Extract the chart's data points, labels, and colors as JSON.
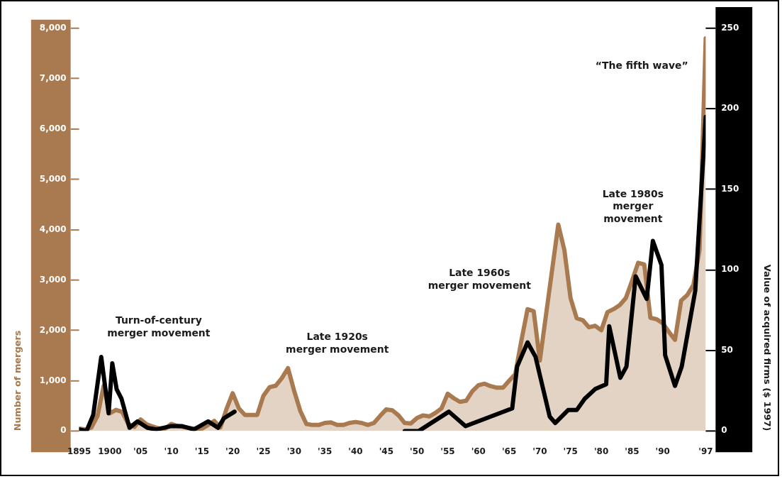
{
  "chart_data": {
    "type": "area",
    "ylabel": "Number of mergers",
    "y2label": "Value of acquired firms ($ 1997)",
    "marker": "none",
    "line_style": "solid",
    "x": [
      1895,
      1896,
      1897,
      1898,
      1899,
      1900,
      1901,
      1902,
      1903,
      1904,
      1905,
      1906,
      1907,
      1908,
      1909,
      1910,
      1911,
      1912,
      1913,
      1914,
      1915,
      1916,
      1917,
      1918,
      1919,
      1920,
      1921,
      1922,
      1923,
      1924,
      1925,
      1926,
      1927,
      1928,
      1929,
      1930,
      1931,
      1932,
      1933,
      1934,
      1935,
      1936,
      1937,
      1938,
      1939,
      1940,
      1941,
      1942,
      1943,
      1944,
      1945,
      1946,
      1947,
      1948,
      1949,
      1950,
      1951,
      1952,
      1953,
      1954,
      1955,
      1956,
      1957,
      1958,
      1959,
      1960,
      1961,
      1962,
      1963,
      1964,
      1965,
      1966,
      1967,
      1968,
      1969,
      1970,
      1971,
      1972,
      1973,
      1974,
      1975,
      1976,
      1977,
      1978,
      1979,
      1980,
      1981,
      1982,
      1983,
      1984,
      1985,
      1986,
      1987,
      1988,
      1989,
      1990,
      1991,
      1992,
      1993,
      1994,
      1995,
      1996,
      1997
    ],
    "xlim": [
      1895,
      1997
    ],
    "xticks": [
      {
        "value": 1895,
        "label": "1895"
      },
      {
        "value": 1900,
        "label": "1900"
      },
      {
        "value": 1905,
        "label": "'05"
      },
      {
        "value": 1910,
        "label": "'10"
      },
      {
        "value": 1915,
        "label": "'15"
      },
      {
        "value": 1920,
        "label": "'20"
      },
      {
        "value": 1925,
        "label": "'25"
      },
      {
        "value": 1930,
        "label": "'30"
      },
      {
        "value": 1935,
        "label": "'35"
      },
      {
        "value": 1940,
        "label": "'40"
      },
      {
        "value": 1945,
        "label": "'45"
      },
      {
        "value": 1950,
        "label": "'50"
      },
      {
        "value": 1955,
        "label": "'55"
      },
      {
        "value": 1960,
        "label": "'60"
      },
      {
        "value": 1965,
        "label": "'65"
      },
      {
        "value": 1970,
        "label": "'70"
      },
      {
        "value": 1975,
        "label": "'75"
      },
      {
        "value": 1980,
        "label": "'80"
      },
      {
        "value": 1985,
        "label": "'85"
      },
      {
        "value": 1990,
        "label": "'90"
      },
      {
        "value": 1997,
        "label": "'97"
      }
    ],
    "ylim": [
      0,
      8000
    ],
    "yticks": [
      0,
      {
        "value": 1000,
        "label": "1,000"
      },
      {
        "value": 2000,
        "label": "2,000"
      },
      {
        "value": 3000,
        "label": "3,000"
      },
      {
        "value": 4000,
        "label": "4,000"
      },
      {
        "value": 5000,
        "label": "5,000"
      },
      {
        "value": 6000,
        "label": "6,000"
      },
      {
        "value": 7000,
        "label": "7,000"
      },
      {
        "value": 8000,
        "label": "8,000"
      }
    ],
    "y2lim": [
      0,
      250
    ],
    "y2ticks": [
      0,
      50,
      100,
      150,
      200,
      250
    ],
    "series": [
      {
        "type": "area",
        "color": "#a97a4f",
        "values": [
          50,
          30,
          70,
          300,
          900,
          350,
          420,
          380,
          140,
          80,
          230,
          130,
          90,
          50,
          50,
          140,
          100,
          80,
          60,
          40,
          50,
          120,
          200,
          70,
          440,
          750,
          450,
          320,
          320,
          320,
          700,
          870,
          900,
          1050,
          1250,
          800,
          400,
          140,
          120,
          120,
          160,
          170,
          120,
          120,
          160,
          180,
          160,
          120,
          160,
          300,
          430,
          410,
          310,
          160,
          150,
          260,
          310,
          290,
          360,
          450,
          740,
          650,
          580,
          600,
          790,
          910,
          940,
          890,
          860,
          860,
          1000,
          1130,
          1800,
          2420,
          2380,
          1400,
          null,
          null,
          4100,
          3590,
          2640,
          2240,
          2200,
          2060,
          2090,
          2000,
          2360,
          2420,
          2500,
          2640,
          2980,
          3340,
          3310,
          2250,
          2220,
          2140,
          1970,
          1810,
          2590,
          2700,
          2900,
          3600,
          7800
        ]
      },
      {
        "type": "line",
        "axis": "y2",
        "color": "#000000",
        "x": [
          1895,
          1896.2,
          1897.3,
          1898.6,
          1899.8,
          1900.4,
          1901.1,
          1901.9,
          1903.2,
          1904.5,
          1906.1,
          1907.6,
          1909.9,
          1911.8,
          1913.7,
          1916,
          1917.6,
          1918.6,
          1920.3,
          1934,
          1948,
          1950.3,
          1955.2,
          1957.9,
          1965.5,
          1966.3,
          1968,
          1969.3,
          1971.6,
          1972.5,
          1974.6,
          1976,
          1977.3,
          1979,
          1980.8,
          1981.3,
          1983.1,
          1984.1,
          1985.6,
          1987.4,
          1988.4,
          1989.8,
          1990.4,
          1992,
          1993.1,
          1995.3,
          1997
        ],
        "values": [
          1,
          0,
          10,
          46,
          11,
          42,
          26,
          20,
          2,
          6,
          2,
          1,
          3,
          3,
          1,
          6,
          2,
          8,
          12,
          null,
          0,
          0,
          12,
          3,
          14,
          40,
          55,
          46,
          9,
          5,
          13,
          13,
          20,
          26,
          29,
          65,
          33,
          40,
          96,
          82,
          118,
          103,
          47,
          28,
          40,
          87,
          195
        ]
      }
    ],
    "annotations": [
      "Turn-of-century\nmerger movement",
      "Late 1920s\nmerger movement",
      "Late 1960s\nmerger movement",
      "Late 1980s\nmerger\nmovement",
      "“The fifth wave”"
    ]
  }
}
